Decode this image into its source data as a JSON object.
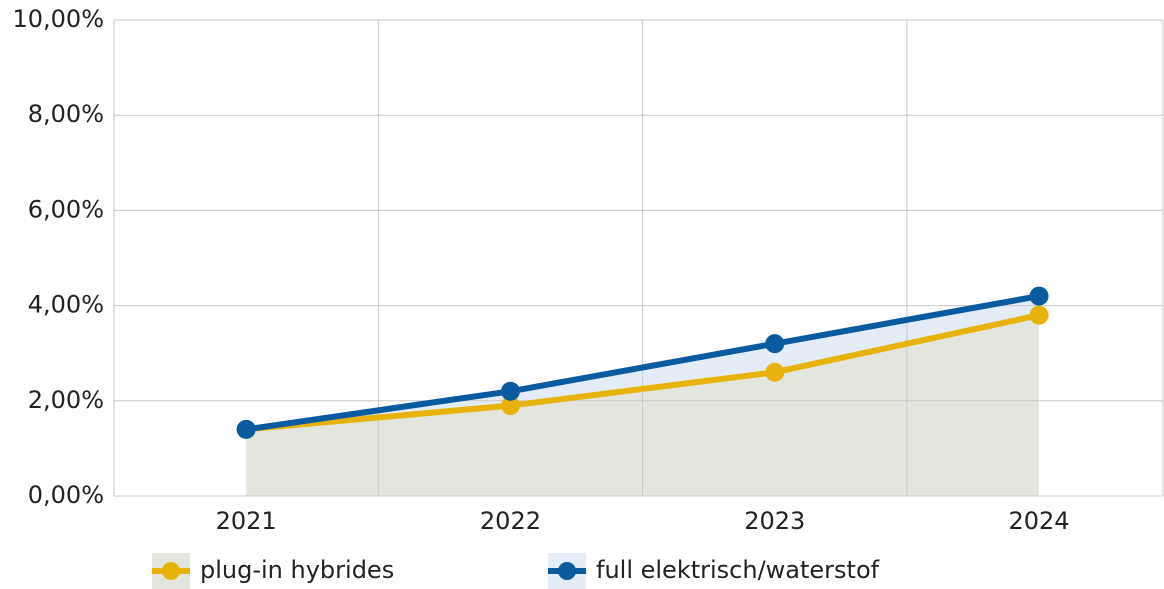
{
  "chart_data": {
    "type": "area",
    "categories": [
      "2021",
      "2022",
      "2023",
      "2024"
    ],
    "series": [
      {
        "name": "plug-in hybrides",
        "color": "#e8b20c",
        "fill": "#e3e6dc",
        "values": [
          1.4,
          1.9,
          2.6,
          3.8
        ]
      },
      {
        "name": "full elektrisch/waterstof",
        "color": "#0a5aa0",
        "fill": "#e4edf7",
        "values": [
          1.4,
          2.2,
          3.2,
          4.2
        ]
      }
    ],
    "ylim": [
      0,
      10
    ],
    "yticks": [
      {
        "value": 0,
        "label": "0,00%"
      },
      {
        "value": 2,
        "label": "2,00%"
      },
      {
        "value": 4,
        "label": "4,00%"
      },
      {
        "value": 6,
        "label": "6,00%"
      },
      {
        "value": 8,
        "label": "8,00%"
      },
      {
        "value": 10,
        "label": "10,00%"
      }
    ],
    "grid": true,
    "legend": "bottom"
  }
}
